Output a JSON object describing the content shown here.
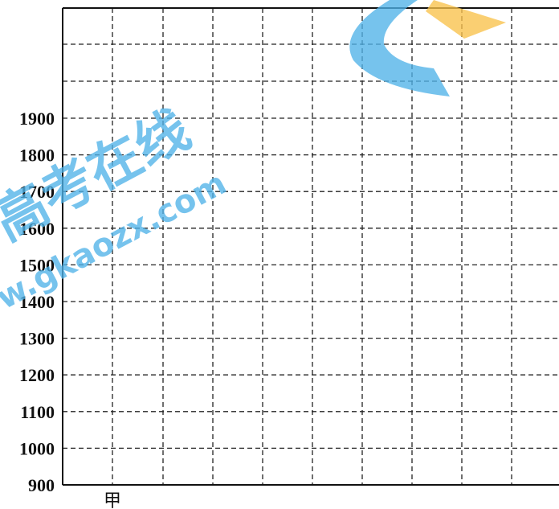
{
  "chart_data": {
    "type": "bar",
    "title": "",
    "xlabel": "",
    "ylabel": "",
    "ylim": [
      900,
      1900
    ],
    "yticks": [
      1900,
      1800,
      1700,
      1600,
      1500,
      1400,
      1300,
      1200,
      1100,
      1000,
      900
    ],
    "categories": [
      "甲"
    ],
    "series": [],
    "grid": true,
    "grid_style": "dashed",
    "legend": "none"
  },
  "watermark": {
    "brand_text": "高考在线",
    "url_text": "www.gkaozx.com",
    "colors": {
      "primary": "#4fb2e8",
      "accent": "#f9c14a"
    }
  }
}
